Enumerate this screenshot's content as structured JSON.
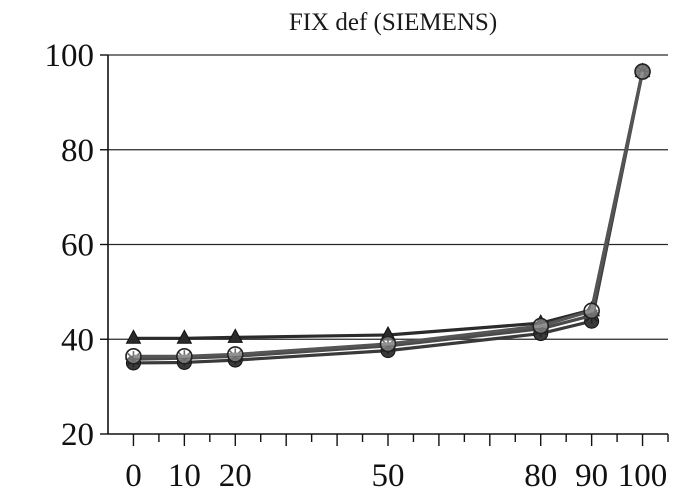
{
  "chart_data": {
    "type": "line",
    "title": "FIX def (SIEMENS)",
    "xlabel": "",
    "ylabel": "",
    "x": [
      0,
      10,
      20,
      50,
      80,
      90,
      100
    ],
    "x_tick_labels": [
      "0",
      "10",
      "20",
      "50",
      "80",
      "90",
      "100"
    ],
    "xlim": [
      -5,
      105
    ],
    "ylim": [
      20,
      100
    ],
    "y_ticks": [
      20,
      40,
      60,
      80,
      100
    ],
    "grid": "horizontal",
    "legend": "none",
    "series": [
      {
        "marker": "triangle",
        "color": "#2b2b2b",
        "values": [
          40.2,
          40.2,
          40.4,
          40.9,
          43.4,
          46.2,
          96.5
        ]
      },
      {
        "marker": "circle",
        "color": "#3a3a3a",
        "values": [
          35.0,
          35.1,
          35.6,
          37.6,
          41.2,
          43.8,
          96.5
        ]
      },
      {
        "marker": "star",
        "color": "#4a4a4a",
        "values": [
          35.8,
          36.0,
          36.4,
          38.6,
          42.2,
          45.0,
          96.5
        ]
      },
      {
        "marker": "open-circle",
        "color": "#555555",
        "values": [
          36.4,
          36.4,
          36.8,
          39.0,
          42.8,
          46.0,
          96.5
        ]
      }
    ]
  }
}
